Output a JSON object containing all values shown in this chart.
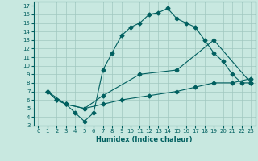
{
  "xlabel": "Humidex (Indice chaleur)",
  "bg_color": "#c8e8e0",
  "grid_color": "#a0c8c0",
  "line_color": "#005f5f",
  "xlim": [
    -0.5,
    23.5
  ],
  "ylim": [
    3,
    17.5
  ],
  "xticks": [
    0,
    1,
    2,
    3,
    4,
    5,
    6,
    7,
    8,
    9,
    10,
    11,
    12,
    13,
    14,
    15,
    16,
    17,
    18,
    19,
    20,
    21,
    22,
    23
  ],
  "yticks": [
    3,
    4,
    5,
    6,
    7,
    8,
    9,
    10,
    11,
    12,
    13,
    14,
    15,
    16,
    17
  ],
  "line1_x": [
    1,
    2,
    3,
    4,
    5,
    6,
    7,
    8,
    9,
    10,
    11,
    12,
    13,
    14,
    15,
    16,
    17,
    18,
    19,
    20,
    21,
    22,
    23
  ],
  "line1_y": [
    7,
    6,
    5.5,
    4.5,
    3.5,
    4.5,
    9.5,
    11.5,
    13.5,
    14.5,
    15.0,
    16.0,
    16.2,
    16.7,
    15.5,
    15.0,
    14.5,
    13.0,
    11.5,
    10.5,
    9.0,
    8.0,
    8.0
  ],
  "line2_x": [
    1,
    2,
    3,
    5,
    7,
    11,
    15,
    19,
    23
  ],
  "line2_y": [
    7,
    6,
    5.5,
    5.0,
    6.5,
    9.0,
    9.5,
    13.0,
    8.0
  ],
  "line3_x": [
    1,
    3,
    5,
    7,
    9,
    12,
    15,
    17,
    19,
    21,
    23
  ],
  "line3_y": [
    7,
    5.5,
    5.0,
    5.5,
    6.0,
    6.5,
    7.0,
    7.5,
    8.0,
    8.0,
    8.5
  ]
}
